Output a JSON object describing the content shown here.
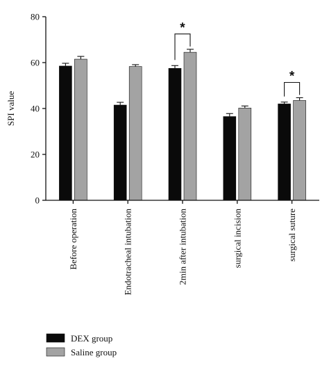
{
  "chart_data": {
    "type": "bar",
    "title": "",
    "xlabel": "",
    "ylabel": "SPI value",
    "ylim": [
      0,
      80
    ],
    "yticks": [
      0,
      20,
      40,
      60,
      80
    ],
    "grid": false,
    "legend_position": "bottom-left",
    "categories": [
      "Before operation",
      "Endotracheal intubation",
      "2min after intubation",
      "surgical incision",
      "surgical suture"
    ],
    "series": [
      {
        "name": "DEX group",
        "color": "#0a0a0a",
        "values": [
          58.5,
          41.5,
          57.5,
          36.5,
          42.0
        ],
        "errors": [
          1.2,
          1.2,
          1.2,
          1.3,
          0.8
        ]
      },
      {
        "name": "Saline group",
        "color": "#a3a3a3",
        "values": [
          61.5,
          58.3,
          64.5,
          40.2,
          43.5
        ],
        "errors": [
          1.2,
          0.8,
          1.3,
          0.9,
          1.2
        ]
      }
    ],
    "annotations": [
      {
        "category_index": 2,
        "label": "*"
      },
      {
        "category_index": 4,
        "label": "*"
      }
    ]
  }
}
